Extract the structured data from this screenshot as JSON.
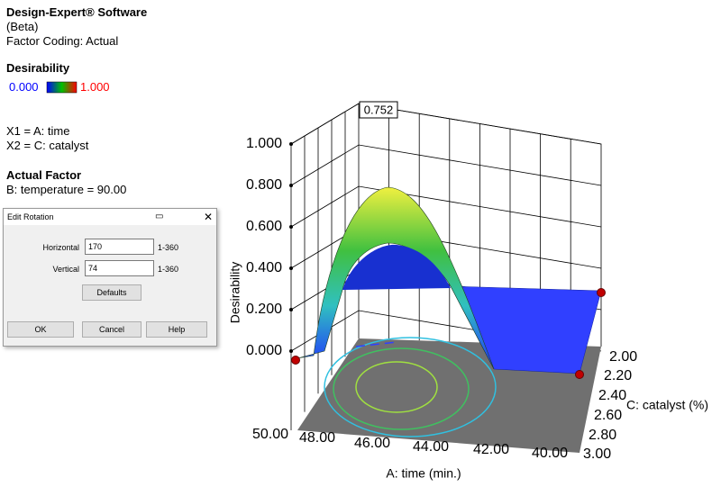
{
  "header": {
    "software": "Design-Expert® Software",
    "edition": "(Beta)",
    "coding": "Factor Coding: Actual"
  },
  "legend": {
    "title": "Desirability",
    "min": "0.000",
    "max": "1.000"
  },
  "factors": {
    "x1": "X1 = A: time",
    "x2": "X2 = C: catalyst",
    "actual_title": "Actual Factor",
    "actual": "B: temperature = 90.00"
  },
  "dialog": {
    "title": "Edit Rotation",
    "rows": [
      {
        "label": "Horizontal",
        "value": "170",
        "range": "1-360"
      },
      {
        "label": "Vertical",
        "value": "74",
        "range": "1-360"
      }
    ],
    "buttons": [
      "Defaults",
      "OK",
      "Cancel",
      "Help"
    ]
  },
  "plot": {
    "annotation": "0.752",
    "z_label": "Desirability",
    "z_ticks": [
      "0.000",
      "0.200",
      "0.400",
      "0.600",
      "0.800",
      "1.000"
    ],
    "x_label": "A: time (min.)",
    "x_ticks": [
      "50.00",
      "48.00",
      "46.00",
      "44.00",
      "42.00",
      "40.00"
    ],
    "y_label": "C: catalyst (%)",
    "y_ticks": [
      "2.00",
      "2.20",
      "2.40",
      "2.60",
      "2.80",
      "3.00"
    ]
  }
}
